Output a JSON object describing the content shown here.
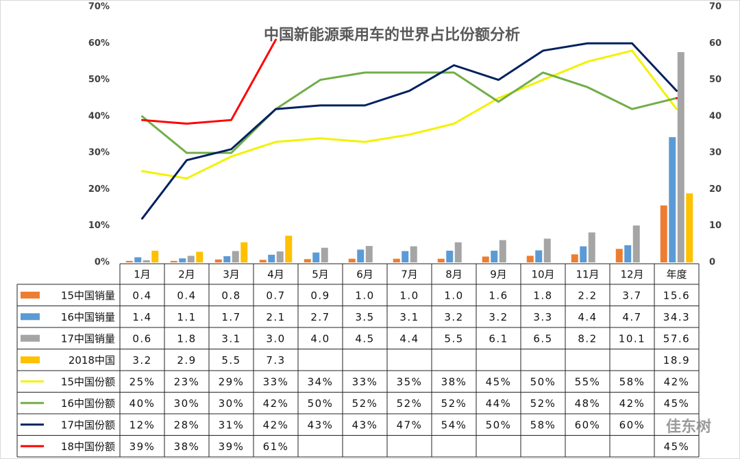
{
  "chart_data": {
    "type": "combo",
    "title": "中国新能源乘用车的世界占比份额分析",
    "categories": [
      "1月",
      "2月",
      "3月",
      "4月",
      "5月",
      "6月",
      "7月",
      "8月",
      "9月",
      "10月",
      "11月",
      "12月",
      "年度"
    ],
    "ylim": [
      0,
      70
    ],
    "yticks": [
      {
        "value": 0,
        "label": "0%"
      },
      {
        "value": 10,
        "label": "10%"
      },
      {
        "value": 20,
        "label": "20%"
      },
      {
        "value": 30,
        "label": "30%"
      },
      {
        "value": 40,
        "label": "40%"
      },
      {
        "value": 50,
        "label": "50%"
      },
      {
        "value": 60,
        "label": "60%"
      },
      {
        "value": 70,
        "label": "70%"
      }
    ],
    "y2lim": [
      0,
      70
    ],
    "y2ticks": [
      0,
      10,
      20,
      30,
      40,
      50,
      60,
      70
    ],
    "series": [
      {
        "name": "15中国销量",
        "type": "bar",
        "axis": "y2",
        "color": "#ED7D31",
        "values": [
          0.4,
          0.4,
          0.8,
          0.7,
          0.9,
          1.0,
          1.0,
          1.0,
          1.6,
          1.8,
          2.2,
          3.7,
          15.6
        ],
        "value_labels": [
          "0.4",
          "0.4",
          "0.8",
          "0.7",
          "0.9",
          "1.0",
          "1.0",
          "1.0",
          "1.6",
          "1.8",
          "2.2",
          "3.7",
          "15.6"
        ]
      },
      {
        "name": "16中国销量",
        "type": "bar",
        "axis": "y2",
        "color": "#5B9BD5",
        "values": [
          1.4,
          1.1,
          1.7,
          2.1,
          2.7,
          3.5,
          3.1,
          3.2,
          3.2,
          3.3,
          4.4,
          4.7,
          34.3
        ],
        "value_labels": [
          "1.4",
          "1.1",
          "1.7",
          "2.1",
          "2.7",
          "3.5",
          "3.1",
          "3.2",
          "3.2",
          "3.3",
          "4.4",
          "4.7",
          "34.3"
        ]
      },
      {
        "name": "17中国销量",
        "type": "bar",
        "axis": "y2",
        "color": "#A5A5A5",
        "values": [
          0.6,
          1.8,
          3.1,
          3.0,
          4.0,
          4.5,
          4.4,
          5.5,
          6.1,
          6.5,
          8.2,
          10.1,
          57.6
        ],
        "value_labels": [
          "0.6",
          "1.8",
          "3.1",
          "3.0",
          "4.0",
          "4.5",
          "4.4",
          "5.5",
          "6.1",
          "6.5",
          "8.2",
          "10.1",
          "57.6"
        ]
      },
      {
        "name": "2018中国",
        "type": "bar",
        "axis": "y2",
        "color": "#FFC000",
        "values": [
          3.2,
          2.9,
          5.5,
          7.3,
          null,
          null,
          null,
          null,
          null,
          null,
          null,
          null,
          18.9
        ],
        "value_labels": [
          "3.2",
          "2.9",
          "5.5",
          "7.3",
          null,
          null,
          null,
          null,
          null,
          null,
          null,
          null,
          "18.9"
        ]
      },
      {
        "name": "15中国份额",
        "type": "line",
        "color": "#F2F200",
        "values": [
          25,
          23,
          29,
          33,
          34,
          33,
          35,
          38,
          45,
          50,
          55,
          58,
          42
        ],
        "value_labels": [
          "25%",
          "23%",
          "29%",
          "33%",
          "34%",
          "33%",
          "35%",
          "38%",
          "45%",
          "50%",
          "55%",
          "58%",
          "42%"
        ]
      },
      {
        "name": "16中国份额",
        "type": "line",
        "color": "#70AD47",
        "values": [
          40,
          30,
          30,
          42,
          50,
          52,
          52,
          52,
          44,
          52,
          48,
          42,
          45
        ],
        "value_labels": [
          "40%",
          "30%",
          "30%",
          "42%",
          "50%",
          "52%",
          "52%",
          "52%",
          "44%",
          "52%",
          "48%",
          "42%",
          "45%"
        ]
      },
      {
        "name": "17中国份额",
        "type": "line",
        "color": "#002060",
        "values": [
          12,
          28,
          31,
          42,
          43,
          43,
          47,
          54,
          50,
          58,
          60,
          60,
          47
        ],
        "value_labels": [
          "12%",
          "28%",
          "31%",
          "42%",
          "43%",
          "43%",
          "47%",
          "54%",
          "50%",
          "58%",
          "60%",
          "60%",
          null
        ]
      },
      {
        "name": "18中国份额",
        "type": "line",
        "color": "#FF0000",
        "values": [
          39,
          38,
          39,
          61,
          null,
          null,
          null,
          null,
          null,
          null,
          null,
          null,
          45
        ],
        "value_labels": [
          "39%",
          "38%",
          "39%",
          "61%",
          null,
          null,
          null,
          null,
          null,
          null,
          null,
          null,
          "45%"
        ]
      }
    ],
    "watermark": "佳东树"
  }
}
